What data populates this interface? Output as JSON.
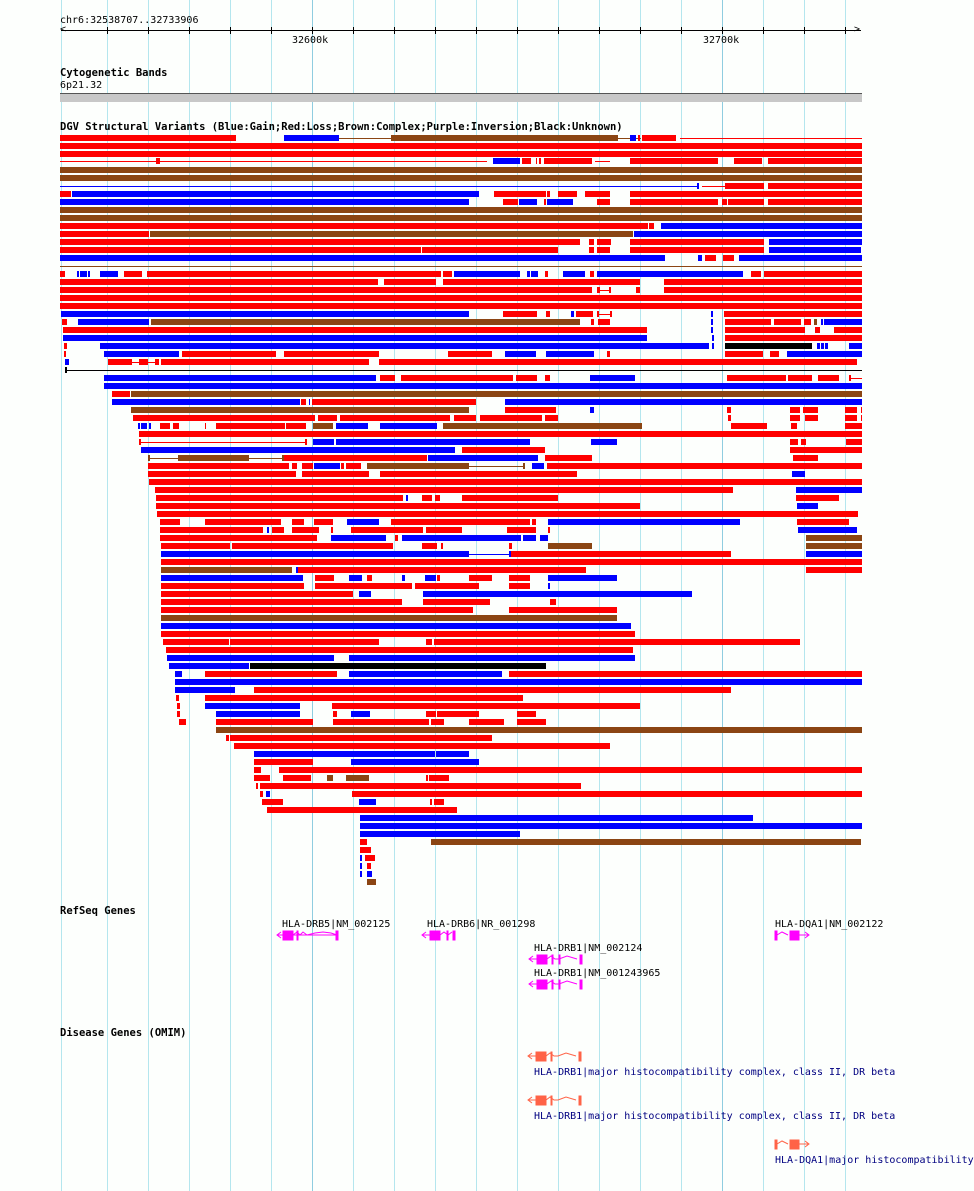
{
  "ruler": {
    "position_label": "chr6:32538707..32733906",
    "tick_labels": [
      "32600k",
      "32700k"
    ]
  },
  "cytoband": {
    "title": "Cytogenetic Bands",
    "band": "6p21.32"
  },
  "dgv": {
    "title": "DGV Structural Variants (Blue:Gain;Red:Loss;Brown:Complex;Purple:Inversion;Black:Unknown)",
    "colors": {
      "gain": "#0000ff",
      "loss": "#ff0000",
      "complex": "#8b4513",
      "inversion": "#800080",
      "unknown": "#000000"
    },
    "legend": [
      "Blue:Gain",
      "Red:Loss",
      "Brown:Complex",
      "Purple:Inversion",
      "Black:Unknown"
    ]
  },
  "refseq": {
    "title": "RefSeq Genes",
    "genes": [
      {
        "label": "HLA-DRB5|NM_002125",
        "strand": "-"
      },
      {
        "label": "HLA-DRB6|NR_001298",
        "strand": "-"
      },
      {
        "label": "HLA-DRB1|NM_002124",
        "strand": "-"
      },
      {
        "label": "HLA-DRB1|NM_001243965",
        "strand": "-"
      },
      {
        "label": "HLA-DQA1|NM_002122",
        "strand": "+"
      }
    ],
    "color": "#ff00ff"
  },
  "omim": {
    "title": "Disease Genes (OMIM)",
    "genes": [
      {
        "label": "HLA-DRB1|major histocompatibility complex, class II, DR beta",
        "strand": "-"
      },
      {
        "label": "HLA-DRB1|major histocompatibility complex, class II, DR beta",
        "strand": "-"
      },
      {
        "label": "HLA-DQA1|major histocompatibility",
        "strand": "+"
      }
    ],
    "color": "#ff6347",
    "label_color": "#000080"
  }
}
